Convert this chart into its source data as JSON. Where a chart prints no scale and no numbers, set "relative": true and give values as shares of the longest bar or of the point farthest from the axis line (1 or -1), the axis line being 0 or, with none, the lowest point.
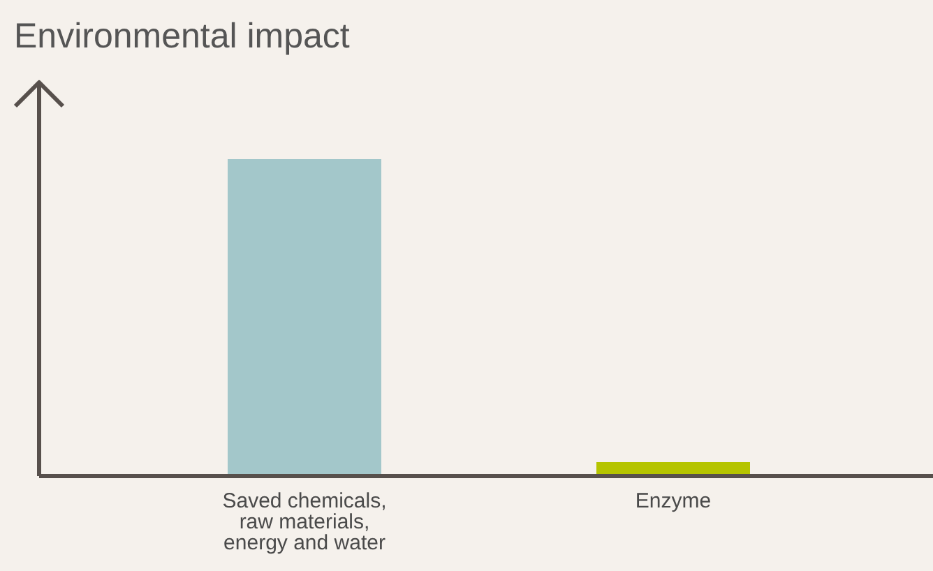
{
  "chart_data": {
    "type": "bar",
    "title": "Environmental impact",
    "categories": [
      "Saved chemicals, raw materials, energy and water",
      "Enzyme"
    ],
    "values": [
      1,
      0.044
    ],
    "colors": [
      "#a3c7ca",
      "#b5c400"
    ],
    "relative": true
  }
}
